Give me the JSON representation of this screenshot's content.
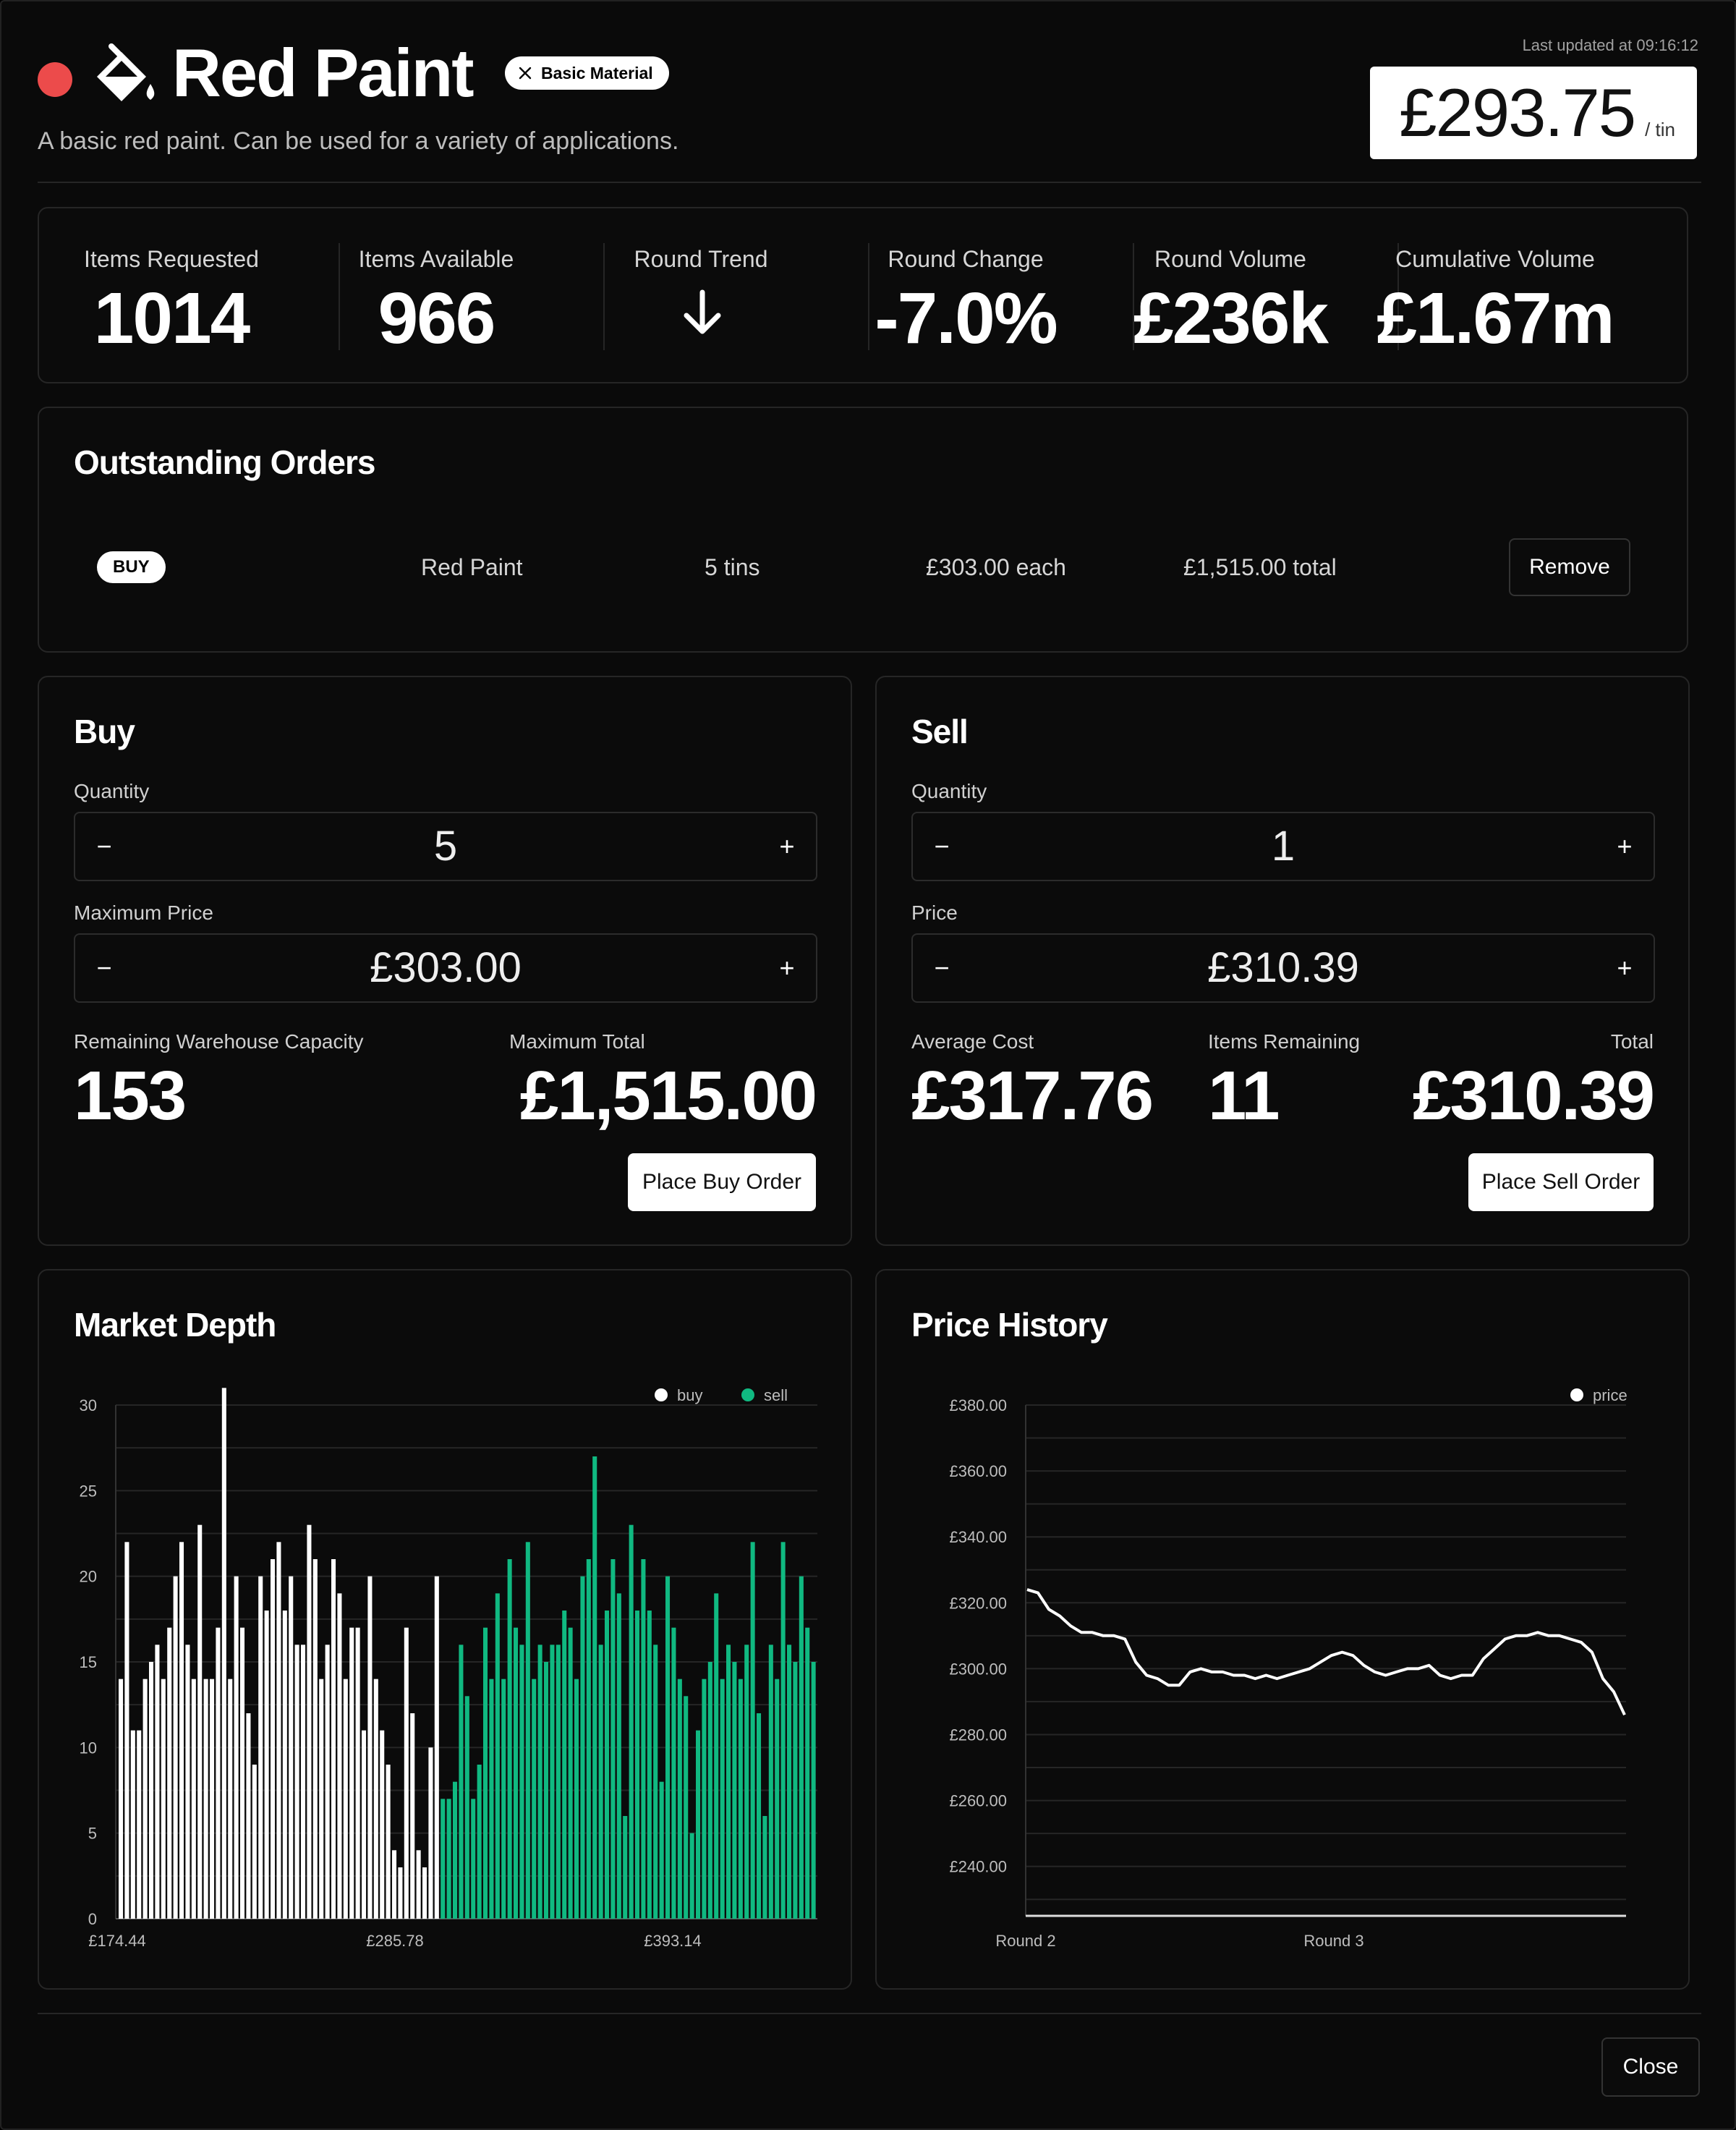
{
  "header": {
    "title": "Red Paint",
    "badge": "Basic Material",
    "subtitle": "A basic red paint. Can be used for a variety of applications.",
    "last_updated": "Last updated at 09:16:12",
    "price": "£293.75",
    "price_unit": "/ tin",
    "accent_color": "#ec4b4b"
  },
  "stats": [
    {
      "label": "Items Requested",
      "value": "1014"
    },
    {
      "label": "Items Available",
      "value": "966"
    },
    {
      "label": "Round Trend",
      "value": "",
      "icon": "arrow-down-icon"
    },
    {
      "label": "Round Change",
      "value": "-7.0%"
    },
    {
      "label": "Round Volume",
      "value": "£236k"
    },
    {
      "label": "Cumulative Volume",
      "value": "£1.67m"
    }
  ],
  "orders": {
    "title": "Outstanding Orders",
    "rows": [
      {
        "side": "BUY",
        "item": "Red Paint",
        "qty": "5 tins",
        "each": "£303.00 each",
        "total": "£1,515.00 total",
        "action": "Remove"
      }
    ]
  },
  "buy": {
    "title": "Buy",
    "qty_label": "Quantity",
    "qty": "5",
    "price_label": "Maximum Price",
    "price": "£303.00",
    "capacity_label": "Remaining Warehouse Capacity",
    "capacity": "153",
    "total_label": "Maximum Total",
    "total": "£1,515.00",
    "button": "Place Buy Order",
    "minus": "−",
    "plus": "+"
  },
  "sell": {
    "title": "Sell",
    "qty_label": "Quantity",
    "qty": "1",
    "price_label": "Price",
    "price": "£310.39",
    "avg_label": "Average Cost",
    "avg": "£317.76",
    "remaining_label": "Items Remaining",
    "remaining": "11",
    "total_label": "Total",
    "total": "£310.39",
    "button": "Place Sell Order",
    "minus": "−",
    "plus": "+"
  },
  "chart_data": [
    {
      "type": "bar",
      "title": "Market Depth",
      "legend": [
        "buy",
        "sell"
      ],
      "legend_position": "top-right",
      "colors": {
        "buy": "#ffffff",
        "sell": "#10b981"
      },
      "ylim": [
        0,
        30
      ],
      "yticks": [
        "0",
        "5",
        "10",
        "15",
        "20",
        "25",
        "30"
      ],
      "xtick_labels": [
        "£174.44",
        "£285.78",
        "£393.14"
      ],
      "grid": true,
      "series": [
        {
          "name": "buy",
          "values": [
            14,
            22,
            11,
            11,
            14,
            15,
            16,
            14,
            17,
            20,
            22,
            16,
            14,
            23,
            14,
            14,
            17,
            31,
            14,
            20,
            17,
            12,
            9,
            20,
            18,
            21,
            22,
            18,
            20,
            16,
            16,
            23,
            21,
            14,
            16,
            21,
            19,
            14,
            17,
            17,
            11,
            20,
            14,
            11,
            9,
            4,
            3,
            17,
            12,
            4,
            3,
            10,
            20
          ]
        },
        {
          "name": "sell",
          "values": [
            7,
            7,
            8,
            16,
            13,
            7,
            9,
            17,
            14,
            19,
            14,
            21,
            17,
            16,
            22,
            14,
            16,
            15,
            16,
            16,
            18,
            17,
            14,
            20,
            21,
            27,
            16,
            18,
            21,
            19,
            6,
            23,
            18,
            21,
            18,
            16,
            8,
            20,
            17,
            14,
            13,
            5,
            11,
            14,
            15,
            19,
            14,
            16,
            15,
            14,
            16,
            22,
            12,
            6,
            16,
            14,
            22,
            16,
            15,
            20,
            17,
            15
          ]
        }
      ]
    },
    {
      "type": "line",
      "title": "Price History",
      "legend": [
        "price"
      ],
      "legend_position": "top-right",
      "ylim": [
        225,
        380
      ],
      "ytick_labels": [
        "£380.00",
        "£360.00",
        "£340.00",
        "£320.00",
        "£300.00",
        "£280.00",
        "£260.00",
        "£240.00"
      ],
      "xtick_labels": [
        "Round 2",
        "Round 3"
      ],
      "grid": true,
      "series": [
        {
          "name": "price",
          "values": [
            324,
            323,
            318,
            316,
            313,
            311,
            311,
            310,
            310,
            309,
            302,
            298,
            297,
            295,
            295,
            299,
            300,
            299,
            299,
            298,
            298,
            297,
            298,
            297,
            298,
            299,
            300,
            302,
            304,
            305,
            304,
            301,
            299,
            298,
            299,
            300,
            300,
            301,
            298,
            297,
            298,
            298,
            303,
            306,
            309,
            310,
            310,
            311,
            310,
            310,
            309,
            308,
            305,
            297,
            293,
            286
          ]
        }
      ]
    }
  ],
  "close_label": "Close"
}
